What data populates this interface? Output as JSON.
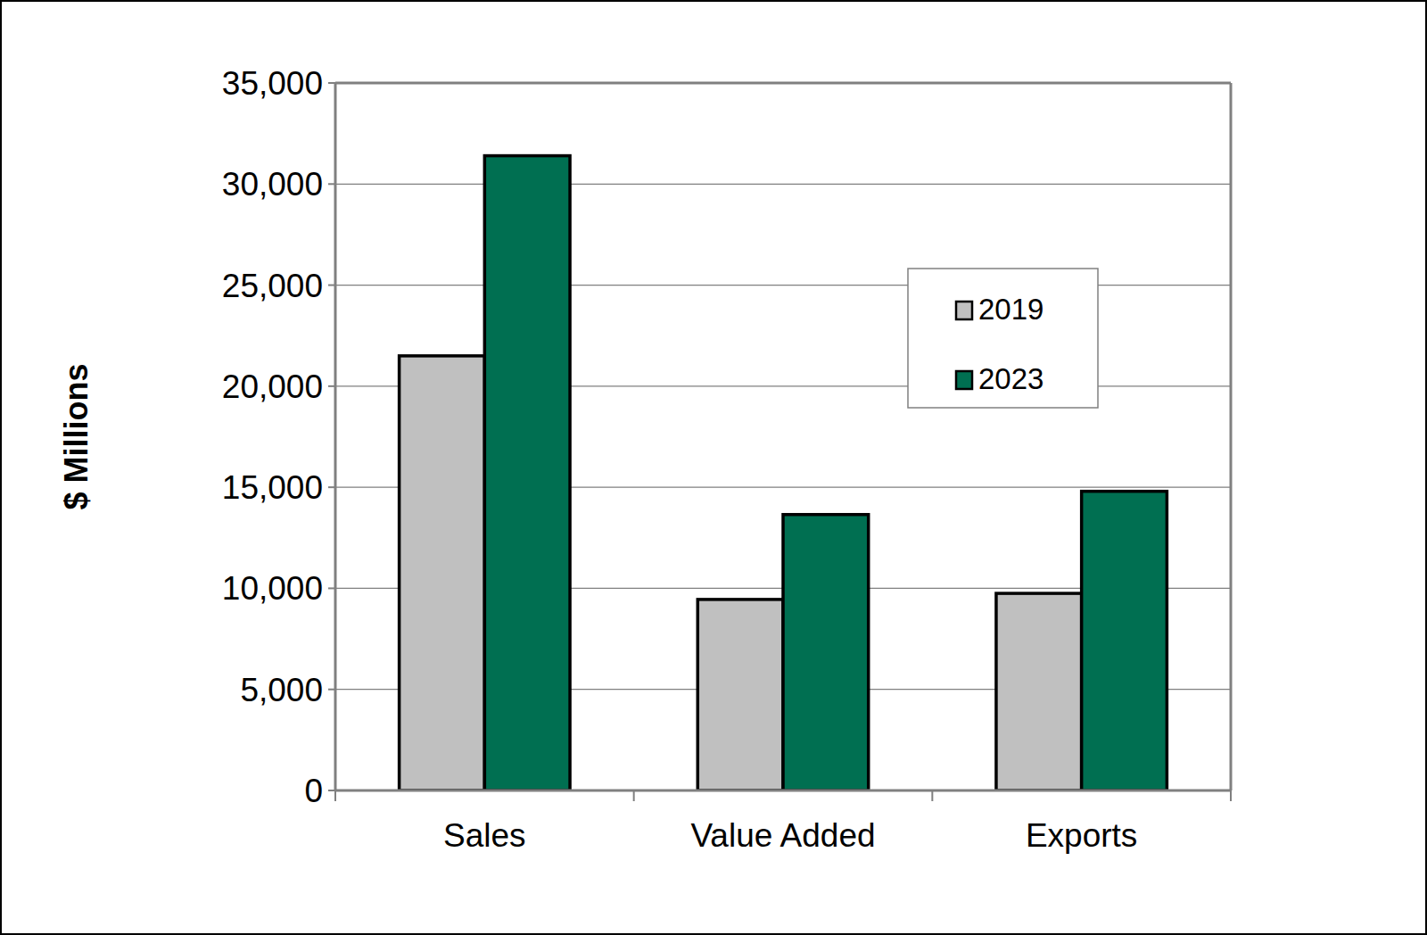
{
  "chart_data": {
    "type": "bar",
    "y_label": "$ Millions",
    "categories": [
      "Sales",
      "Value Added",
      "Exports"
    ],
    "series": [
      {
        "name": "2019",
        "color": "#c0c0c0",
        "values": [
          21500,
          9450,
          9750
        ]
      },
      {
        "name": "2023",
        "color": "#006f51",
        "values": [
          31400,
          13650,
          14800
        ]
      }
    ],
    "ylim": [
      0,
      35000
    ],
    "yticks": [
      0,
      {
        "value": 5000,
        "label": "5,000"
      },
      {
        "value": 10000,
        "label": "10,000"
      },
      {
        "value": 15000,
        "label": "15,000"
      },
      {
        "value": 20000,
        "label": "20,000"
      },
      {
        "value": 25000,
        "label": "25,000"
      },
      {
        "value": 30000,
        "label": "30,000"
      },
      {
        "value": 35000,
        "label": "35,000"
      }
    ],
    "grid": true,
    "legend": "upper right"
  }
}
